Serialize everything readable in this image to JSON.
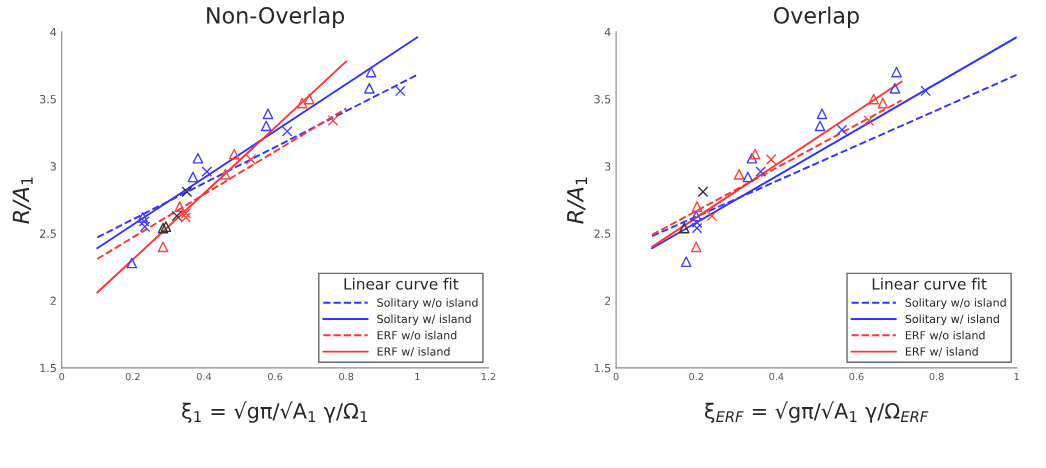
{
  "chart_data": [
    {
      "type": "scatter",
      "title": "Non-Overlap",
      "xlabel": "ξ$_{1}$ = √gπ/√A$_{1}$ γ/Ω$_{1}$",
      "ylabel": "R/A$_{1}$",
      "xlim": [
        0,
        1.2
      ],
      "xticks": [
        0,
        0.2,
        0.4,
        0.6,
        0.8,
        1,
        1.2
      ],
      "ylim": [
        1.5,
        4
      ],
      "yticks": [
        1.5,
        2,
        2.5,
        3,
        3.5,
        4
      ],
      "legend": "bottom right",
      "legend_title": "Linear curve fit",
      "grid": false,
      "series": [
        {
          "color": "#4040ff",
          "marker": "triangle",
          "x": [
            0.383,
            0.369,
            0.58,
            0.575,
            0.87,
            0.865,
            0.228,
            0.197
          ],
          "values": [
            3.06,
            2.92,
            3.39,
            3.3,
            3.7,
            3.58,
            2.62,
            2.28
          ]
        },
        {
          "color": "#4040ff",
          "marker": "cross",
          "x": [
            0.408,
            0.634,
            0.952,
            0.234,
            0.232
          ],
          "values": [
            2.96,
            3.26,
            3.56,
            2.55,
            2.59
          ]
        },
        {
          "color": "#ff4040",
          "marker": "triangle",
          "x": [
            0.485,
            0.46,
            0.676,
            0.696,
            0.332,
            0.285
          ],
          "values": [
            3.09,
            2.94,
            3.47,
            3.5,
            2.7,
            2.4
          ]
        },
        {
          "color": "#ff4040",
          "marker": "cross",
          "x": [
            0.532,
            0.763,
            0.349,
            0.349
          ],
          "values": [
            3.05,
            3.34,
            2.65,
            2.62
          ]
        },
        {
          "color": "#333333",
          "marker": "cross",
          "x": [
            0.352,
            0.324
          ],
          "values": [
            2.81,
            2.63
          ]
        },
        {
          "color": "#333333",
          "marker": "triangle",
          "x": [
            0.293,
            0.285
          ],
          "values": [
            2.55,
            2.54
          ]
        },
        {
          "type": "line",
          "name": "Solitary w/o island",
          "color": "#3333ff",
          "line_style": "dashed",
          "x": [
            0.1,
            1.0
          ],
          "values": [
            2.47,
            3.68
          ]
        },
        {
          "type": "line",
          "name": "Solitary w/ island",
          "color": "#3333ff",
          "line_style": "solid",
          "x": [
            0.1,
            1.0
          ],
          "values": [
            2.39,
            3.96
          ]
        },
        {
          "type": "line",
          "name": "ERF w/o island",
          "color": "#ff3333",
          "line_style": "dashed",
          "x": [
            0.1,
            0.8
          ],
          "values": [
            2.31,
            3.43
          ]
        },
        {
          "type": "line",
          "name": "ERF w/ island",
          "color": "#ff3333",
          "line_style": "solid",
          "x": [
            0.1,
            0.8
          ],
          "values": [
            2.06,
            3.78
          ]
        }
      ]
    },
    {
      "type": "scatter",
      "title": "Overlap",
      "xlabel": "ξ$_{ERF}$ = √gπ/√A$_{1}$ γ/Ω$_{ERF}$",
      "ylabel": "R/A$_{1}$",
      "xlim": [
        0,
        1
      ],
      "xticks": [
        0,
        0.2,
        0.4,
        0.6,
        0.8,
        1
      ],
      "ylim": [
        1.5,
        4
      ],
      "yticks": [
        1.5,
        2,
        2.5,
        3,
        3.5,
        4
      ],
      "legend": "bottom right",
      "legend_title": "Linear curve fit",
      "grid": false,
      "series": [
        {
          "color": "#4040ff",
          "marker": "triangle",
          "x": [
            0.339,
            0.329,
            0.514,
            0.509,
            0.7,
            0.696,
            0.175,
            0.2
          ],
          "values": [
            3.06,
            2.92,
            3.39,
            3.3,
            3.7,
            3.58,
            2.29,
            2.63
          ]
        },
        {
          "color": "#4040ff",
          "marker": "cross",
          "x": [
            0.361,
            0.564,
            0.773,
            0.202,
            0.202
          ],
          "values": [
            2.96,
            3.27,
            3.56,
            2.58,
            2.54
          ]
        },
        {
          "color": "#ff4040",
          "marker": "triangle",
          "x": [
            0.307,
            0.347,
            0.643,
            0.666,
            0.202,
            0.2
          ],
          "values": [
            2.94,
            3.09,
            3.5,
            3.47,
            2.7,
            2.4
          ]
        },
        {
          "color": "#ff4040",
          "marker": "cross",
          "x": [
            0.387,
            0.631,
            0.239
          ],
          "values": [
            3.05,
            3.34,
            2.63
          ]
        },
        {
          "color": "#333333",
          "marker": "cross",
          "x": [
            0.217
          ],
          "values": [
            2.81
          ]
        },
        {
          "color": "#333333",
          "marker": "triangle",
          "x": [
            0.17
          ],
          "values": [
            2.54
          ]
        },
        {
          "type": "line",
          "name": "Solitary w/o island",
          "color": "#3333ff",
          "line_style": "dashed",
          "x": [
            0.09,
            1.0
          ],
          "values": [
            2.48,
            3.68
          ]
        },
        {
          "type": "line",
          "name": "Solitary w/ island",
          "color": "#3333ff",
          "line_style": "solid",
          "x": [
            0.09,
            1.0
          ],
          "values": [
            2.39,
            3.96
          ]
        },
        {
          "type": "line",
          "name": "ERF w/o island",
          "color": "#ff3333",
          "line_style": "dashed",
          "x": [
            0.09,
            0.713
          ],
          "values": [
            2.49,
            3.49
          ]
        },
        {
          "type": "line",
          "name": "ERF w/ island",
          "color": "#ff3333",
          "line_style": "solid",
          "x": [
            0.09,
            0.713
          ],
          "values": [
            2.4,
            3.63
          ]
        }
      ]
    }
  ]
}
